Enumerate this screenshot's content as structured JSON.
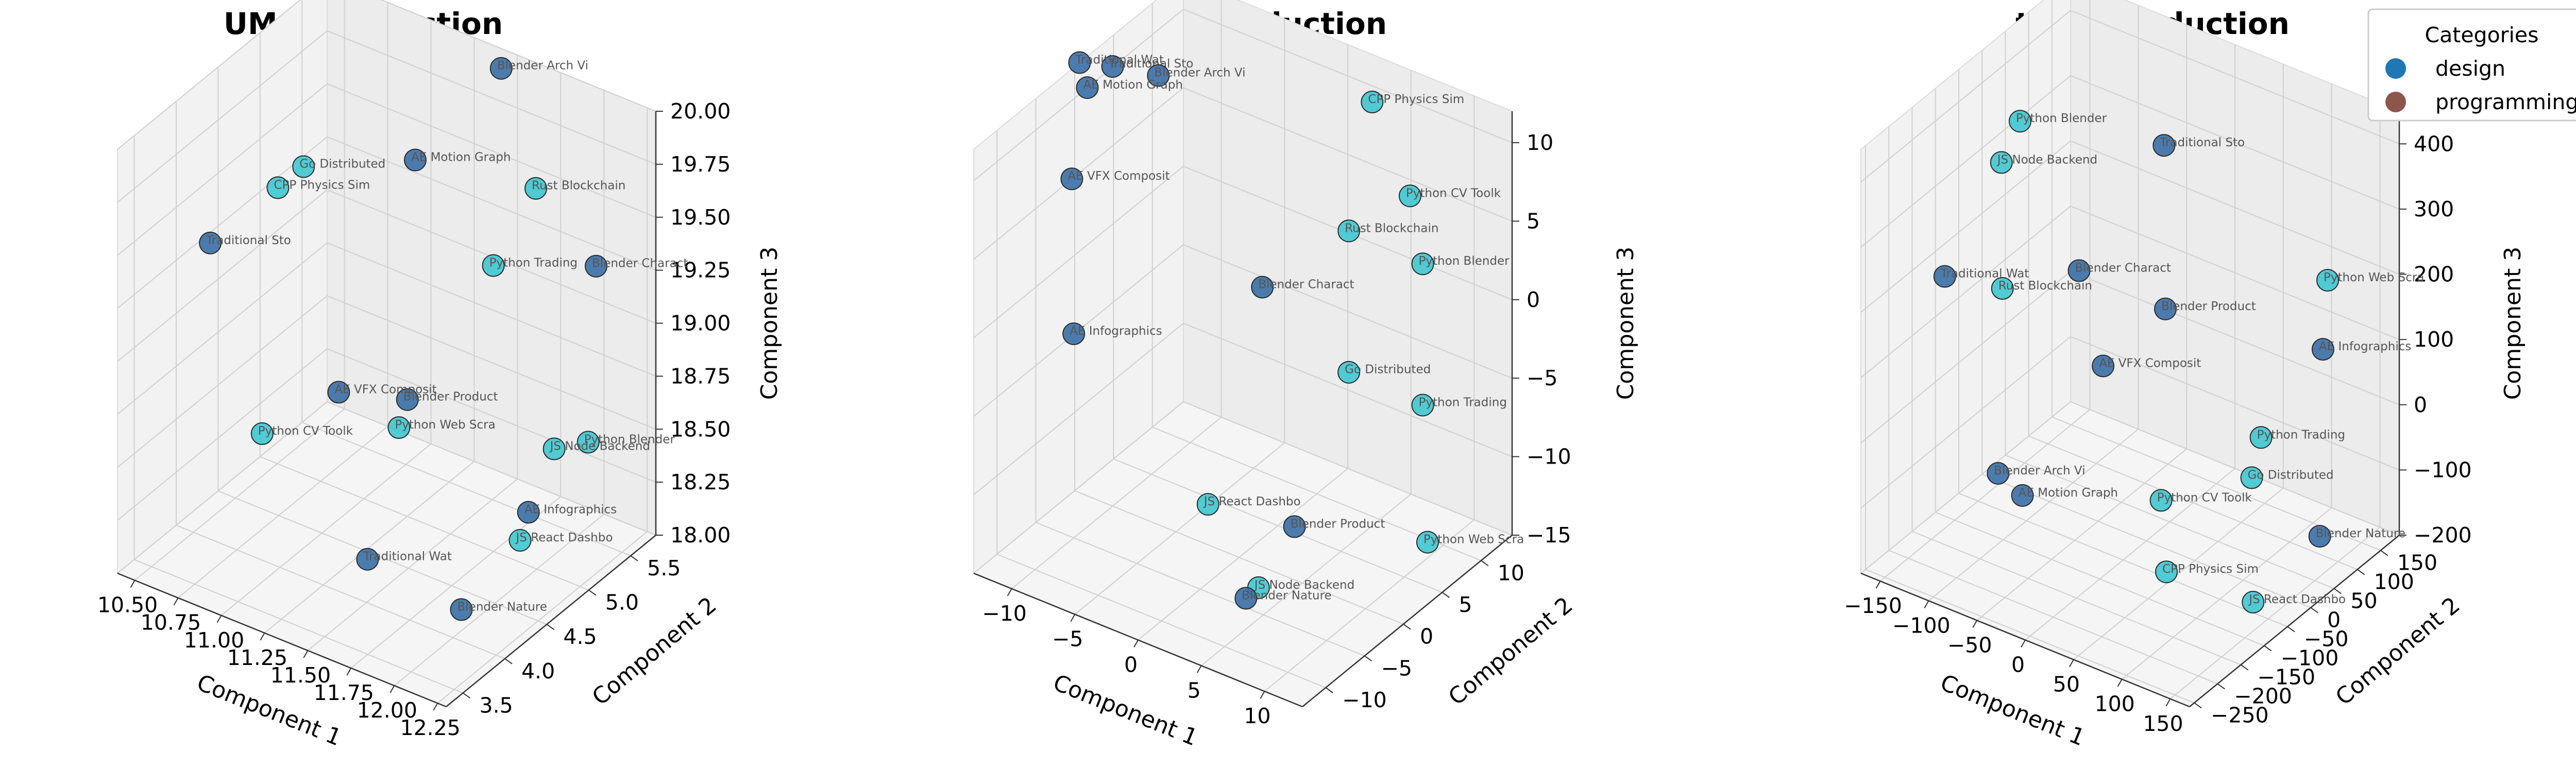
{
  "legend": {
    "title": "Categories",
    "position": "top-right",
    "entries": [
      {
        "label": "design",
        "color": "#1f77b4"
      },
      {
        "label": "programming",
        "color": "#8c564b"
      }
    ]
  },
  "point_colors": {
    "design": "#3a6fa6",
    "programming": "#3fc6d0"
  },
  "chart_data": [
    {
      "type": "scatter",
      "projection": "3d",
      "title": "UMAP Reduction",
      "xlabel": "Component 1",
      "ylabel": "Component 2",
      "zlabel": "Component 3",
      "xlim": [
        10.4,
        12.3
      ],
      "ylim": [
        3.3,
        5.8
      ],
      "zlim": [
        18.0,
        20.0
      ],
      "xticks": [
        "10.50",
        "10.75",
        "11.00",
        "11.25",
        "11.50",
        "11.75",
        "12.00",
        "12.25"
      ],
      "yticks": [
        "3.5",
        "4.0",
        "4.5",
        "5.0",
        "5.5"
      ],
      "zticks": [
        "18.00",
        "18.25",
        "18.50",
        "18.75",
        "19.00",
        "19.25",
        "19.50",
        "19.75",
        "20.00"
      ],
      "grid": true,
      "points": [
        {
          "label": "Blender Arch Vi",
          "category": "design",
          "x": 11.6,
          "y": 5.4,
          "z": 20.1
        },
        {
          "label": "AE Motion Graph",
          "category": "design",
          "x": 11.2,
          "y": 5.2,
          "z": 19.6
        },
        {
          "label": "Rust Blockchain",
          "category": "programming",
          "x": 11.8,
          "y": 5.4,
          "z": 19.6
        },
        {
          "label": "Go Distributed",
          "category": "programming",
          "x": 10.7,
          "y": 4.9,
          "z": 19.5
        },
        {
          "label": "CPP Physics Sim",
          "category": "programming",
          "x": 10.6,
          "y": 4.8,
          "z": 19.4
        },
        {
          "label": "Python Trading",
          "category": "programming",
          "x": 11.7,
          "y": 5.1,
          "z": 19.3
        },
        {
          "label": "Blender Charact",
          "category": "design",
          "x": 12.1,
          "y": 5.5,
          "z": 19.3
        },
        {
          "label": "Traditional Sto",
          "category": "design",
          "x": 10.5,
          "y": 4.2,
          "z": 19.3
        },
        {
          "label": "Python Blender",
          "category": "programming",
          "x": 12.2,
          "y": 5.2,
          "z": 18.6
        },
        {
          "label": "JS Node Backend",
          "category": "programming",
          "x": 12.1,
          "y": 5.0,
          "z": 18.6
        },
        {
          "label": "Blender Product",
          "category": "design",
          "x": 11.3,
          "y": 4.9,
          "z": 18.6
        },
        {
          "label": "AE VFX Composit",
          "category": "design",
          "x": 11.0,
          "y": 4.7,
          "z": 18.6
        },
        {
          "label": "Python Web Scra",
          "category": "programming",
          "x": 11.3,
          "y": 4.8,
          "z": 18.5
        },
        {
          "label": "AE Infographics",
          "category": "design",
          "x": 12.0,
          "y": 4.9,
          "z": 18.3
        },
        {
          "label": "JS React Dashbo",
          "category": "programming",
          "x": 12.0,
          "y": 4.8,
          "z": 18.2
        },
        {
          "label": "Python CV Toolk",
          "category": "programming",
          "x": 10.8,
          "y": 4.2,
          "z": 18.5
        },
        {
          "label": "Blender Nature",
          "category": "design",
          "x": 12.0,
          "y": 4.1,
          "z": 18.1
        },
        {
          "label": "Traditional Wat",
          "category": "design",
          "x": 11.7,
          "y": 3.6,
          "z": 18.4
        }
      ]
    },
    {
      "type": "scatter",
      "projection": "3d",
      "title": "PCA Reduction",
      "xlabel": "Component 1",
      "ylabel": "Component 2",
      "zlabel": "Component 3",
      "xlim": [
        -13,
        13
      ],
      "ylim": [
        -13,
        14
      ],
      "zlim": [
        -15,
        12
      ],
      "xticks": [
        "−10",
        "−5",
        "0",
        "5",
        "10"
      ],
      "yticks": [
        "−10",
        "−5",
        "0",
        "5",
        "10"
      ],
      "zticks": [
        "−15",
        "−10",
        "−5",
        "0",
        "5",
        "10"
      ],
      "grid": true,
      "points": [
        {
          "label": "CPP Physics Sim",
          "category": "programming",
          "x": 5,
          "y": 9,
          "z": 12
        },
        {
          "label": "Python CV Toolk",
          "category": "programming",
          "x": 8,
          "y": 9,
          "z": 7
        },
        {
          "label": "Traditional Sto",
          "category": "design",
          "x": -10,
          "y": 0,
          "z": 13
        },
        {
          "label": "Blender Arch Vi",
          "category": "design",
          "x": -7,
          "y": 1,
          "z": 13
        },
        {
          "label": "Traditional Wat",
          "category": "design",
          "x": -12,
          "y": -1,
          "z": 13
        },
        {
          "label": "AE Motion Graph",
          "category": "design",
          "x": -12,
          "y": 0,
          "z": 11
        },
        {
          "label": "Rust Blockchain",
          "category": "programming",
          "x": 5,
          "y": 6,
          "z": 5
        },
        {
          "label": "Python Blender",
          "category": "programming",
          "x": 9,
          "y": 9,
          "z": 3
        },
        {
          "label": "AE VFX Composit",
          "category": "design",
          "x": -12,
          "y": -2,
          "z": 6
        },
        {
          "label": "Blender Charact",
          "category": "design",
          "x": 0,
          "y": 3,
          "z": 1
        },
        {
          "label": "Go Distributed",
          "category": "programming",
          "x": 5,
          "y": 6,
          "z": -4
        },
        {
          "label": "Python Trading",
          "category": "programming",
          "x": 9,
          "y": 9,
          "z": -6
        },
        {
          "label": "AE Infographics",
          "category": "design",
          "x": -10,
          "y": -5,
          "z": -2
        },
        {
          "label": "Python Web Scra",
          "category": "programming",
          "x": 10,
          "y": 8,
          "z": -14
        },
        {
          "label": "JS React Dashbo",
          "category": "programming",
          "x": 0,
          "y": -4,
          "z": -10
        },
        {
          "label": "Blender Product",
          "category": "design",
          "x": 5,
          "y": -1,
          "z": -11
        },
        {
          "label": "JS Node Backend",
          "category": "programming",
          "x": 4,
          "y": -4,
          "z": -14
        },
        {
          "label": "Blender Nature",
          "category": "design",
          "x": 3,
          "y": -4,
          "z": -15
        }
      ]
    },
    {
      "type": "scatter",
      "projection": "3d",
      "title": "t-SNE Reduction",
      "xlabel": "Component 1",
      "ylabel": "Component 2",
      "zlabel": "Component 3",
      "xlim": [
        -170,
        170
      ],
      "ylim": [
        -260,
        190
      ],
      "zlim": [
        -200,
        450
      ],
      "xticks": [
        "−150",
        "−100",
        "−50",
        "0",
        "50",
        "100",
        "150"
      ],
      "yticks": [
        "−250",
        "−200",
        "−150",
        "−100",
        "−50",
        "0",
        "50",
        "100",
        "150"
      ],
      "zticks": [
        "−200",
        "−100",
        "0",
        "100",
        "200",
        "300",
        "400"
      ],
      "grid": true,
      "points": [
        {
          "label": "Python Blender",
          "category": "programming",
          "x": -150,
          "y": 40,
          "z": 330
        },
        {
          "label": "JS Node Backend",
          "category": "programming",
          "x": -150,
          "y": 0,
          "z": 290
        },
        {
          "label": "Traditional Sto",
          "category": "design",
          "x": -30,
          "y": 100,
          "z": 330
        },
        {
          "label": "Blender Charact",
          "category": "design",
          "x": -60,
          "y": -20,
          "z": 190
        },
        {
          "label": "Rust Blockchain",
          "category": "programming",
          "x": -120,
          "y": -60,
          "z": 150
        },
        {
          "label": "Blender Product",
          "category": "design",
          "x": 10,
          "y": 20,
          "z": 150
        },
        {
          "label": "Python Web Scra",
          "category": "programming",
          "x": 120,
          "y": 140,
          "z": 190
        },
        {
          "label": "AE Infographics",
          "category": "design",
          "x": 120,
          "y": 130,
          "z": 90
        },
        {
          "label": "Traditional Wat",
          "category": "design",
          "x": -170,
          "y": -80,
          "z": 150
        },
        {
          "label": "AE VFX Composit",
          "category": "design",
          "x": -40,
          "y": -10,
          "z": 50
        },
        {
          "label": "Python Trading",
          "category": "programming",
          "x": 80,
          "y": 80,
          "z": -40
        },
        {
          "label": "Go Distributed",
          "category": "programming",
          "x": 80,
          "y": 60,
          "z": -90
        },
        {
          "label": "Blender Arch Vi",
          "category": "design",
          "x": -110,
          "y": -90,
          "z": -110
        },
        {
          "label": "AE Motion Graph",
          "category": "design",
          "x": -80,
          "y": -100,
          "z": -120
        },
        {
          "label": "Python CV Toolk",
          "category": "programming",
          "x": 20,
          "y": -10,
          "z": -120
        },
        {
          "label": "CPP Physics Sim",
          "category": "programming",
          "x": 40,
          "y": -40,
          "z": -200
        },
        {
          "label": "Blender Nature",
          "category": "design",
          "x": 160,
          "y": 40,
          "z": -120
        },
        {
          "label": "JS React Dashbo",
          "category": "programming",
          "x": 120,
          "y": -20,
          "z": -210
        }
      ]
    }
  ]
}
